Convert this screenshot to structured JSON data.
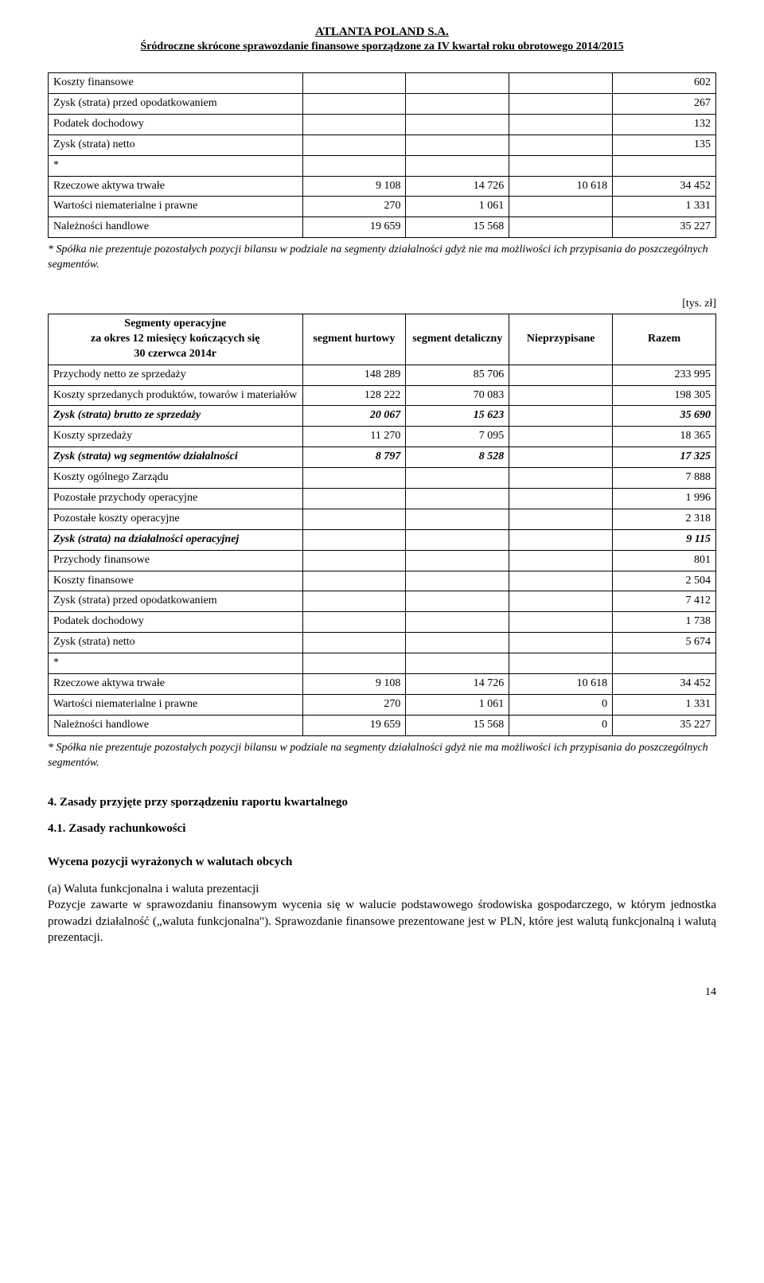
{
  "header": {
    "company": "ATLANTA POLAND S.A.",
    "sub": "Śródroczne skrócone sprawozdanie finansowe sporządzone za IV kwartał roku obrotowego 2014/2015"
  },
  "table1": {
    "rows": [
      {
        "label": "Koszty finansowe",
        "c1": "",
        "c2": "",
        "c3": "",
        "c4": "602"
      },
      {
        "label": "Zysk (strata) przed opodatkowaniem",
        "c1": "",
        "c2": "",
        "c3": "",
        "c4": "267"
      },
      {
        "label": "Podatek dochodowy",
        "c1": "",
        "c2": "",
        "c3": "",
        "c4": "132"
      },
      {
        "label": "Zysk (strata) netto",
        "c1": "",
        "c2": "",
        "c3": "",
        "c4": "135"
      },
      {
        "label": "*",
        "c1": "",
        "c2": "",
        "c3": "",
        "c4": ""
      },
      {
        "label": "Rzeczowe aktywa trwałe",
        "c1": "9 108",
        "c2": "14 726",
        "c3": "10 618",
        "c4": "34 452"
      },
      {
        "label": "Wartości niematerialne i prawne",
        "c1": "270",
        "c2": "1 061",
        "c3": "",
        "c4": "1 331"
      },
      {
        "label": "Należności handlowe",
        "c1": "19 659",
        "c2": "15 568",
        "c3": "",
        "c4": "35 227"
      }
    ],
    "footnote": "* Spółka nie prezentuje pozostałych pozycji bilansu w podziale na segmenty działalności gdyż nie ma możliwości ich przypisania do poszczególnych segmentów."
  },
  "unit_label": "[tys. zł]",
  "table2": {
    "head": {
      "r0": "Segmenty operacyjne\nza okres 12 miesięcy kończących się\n30 czerwca 2014r",
      "h1": "segment hurtowy",
      "h2": "segment detaliczny",
      "h3": "Nieprzypisane",
      "h4": "Razem"
    },
    "rows": [
      {
        "label": "Przychody netto ze sprzedaży",
        "c1": "148 289",
        "c2": "85 706",
        "c3": "",
        "c4": "233 995"
      },
      {
        "label": "Koszty sprzedanych produktów, towarów i materiałów",
        "c1": "128 222",
        "c2": "70 083",
        "c3": "",
        "c4": "198 305"
      },
      {
        "label": "Zysk (strata) brutto ze sprzedaży",
        "bi": true,
        "c1": "20 067",
        "c2": "15 623",
        "c3": "",
        "c4": "35 690"
      },
      {
        "label": "Koszty sprzedaży",
        "c1": "11 270",
        "c2": "7 095",
        "c3": "",
        "c4": "18 365"
      },
      {
        "label": "Zysk (strata) wg segmentów działalności",
        "bi": true,
        "c1": "8 797",
        "c2": "8 528",
        "c3": "",
        "c4": "17 325"
      },
      {
        "label": "Koszty ogólnego Zarządu",
        "c1": "",
        "c2": "",
        "c3": "",
        "c4": "7 888"
      },
      {
        "label": "Pozostałe przychody operacyjne",
        "c1": "",
        "c2": "",
        "c3": "",
        "c4": "1 996"
      },
      {
        "label": "Pozostałe koszty operacyjne",
        "c1": "",
        "c2": "",
        "c3": "",
        "c4": "2 318"
      },
      {
        "label": "Zysk (strata) na działalności operacyjnej",
        "bi": true,
        "c1": "",
        "c2": "",
        "c3": "",
        "c4": "9 115"
      },
      {
        "label": "Przychody finansowe",
        "c1": "",
        "c2": "",
        "c3": "",
        "c4": "801"
      },
      {
        "label": "Koszty finansowe",
        "c1": "",
        "c2": "",
        "c3": "",
        "c4": "2 504"
      },
      {
        "label": "Zysk (strata) przed opodatkowaniem",
        "c1": "",
        "c2": "",
        "c3": "",
        "c4": "7 412"
      },
      {
        "label": "Podatek dochodowy",
        "c1": "",
        "c2": "",
        "c3": "",
        "c4": "1 738"
      },
      {
        "label": "Zysk (strata) netto",
        "c1": "",
        "c2": "",
        "c3": "",
        "c4": "5 674"
      },
      {
        "label": "*",
        "c1": "",
        "c2": "",
        "c3": "",
        "c4": ""
      },
      {
        "label": "Rzeczowe aktywa trwałe",
        "c1": "9 108",
        "c2": "14 726",
        "c3": "10 618",
        "c4": "34 452"
      },
      {
        "label": "Wartości niematerialne i prawne",
        "c1": "270",
        "c2": "1 061",
        "c3": "0",
        "c4": "1 331"
      },
      {
        "label": "Należności handlowe",
        "c1": "19 659",
        "c2": "15 568",
        "c3": "0",
        "c4": "35 227"
      }
    ],
    "footnote": "* Spółka nie prezentuje pozostałych pozycji bilansu w podziale na segmenty działalności gdyż nie ma możliwości ich przypisania do poszczególnych segmentów."
  },
  "section4": {
    "title": "4. Zasady przyjęte przy sporządzeniu raportu kwartalnego",
    "sub1": "4.1. Zasady rachunkowości",
    "subtitle": "Wycena pozycji wyrażonych w walutach obcych",
    "para_a_head": "(a) Waluta funkcjonalna i waluta prezentacji",
    "para_a_body": "Pozycje zawarte w sprawozdaniu finansowym wycenia się w walucie podstawowego środowiska gospodarczego, w którym jednostka prowadzi działalność („waluta funkcjonalna\"). Sprawozdanie finansowe prezentowane jest w PLN, które jest walutą funkcjonalną i walutą prezentacji."
  },
  "pagenum": "14",
  "colwidths": {
    "label": 320,
    "c": 130
  }
}
